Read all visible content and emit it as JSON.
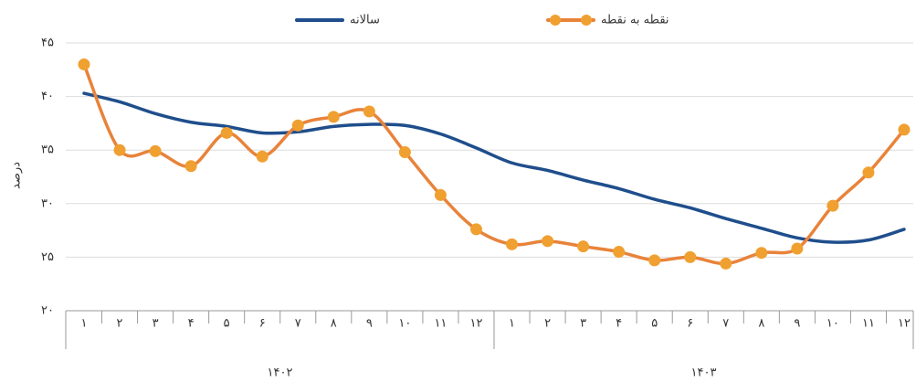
{
  "chart_data": {
    "type": "line",
    "y_label": "درصد",
    "categories": [
      "۱",
      "۲",
      "۳",
      "۴",
      "۵",
      "۶",
      "۷",
      "۸",
      "۹",
      "۱۰",
      "۱۱",
      "۱۲",
      "۱",
      "۲",
      "۳",
      "۴",
      "۵",
      "۶",
      "۷",
      "۸",
      "۹",
      "۱۰",
      "۱۱",
      "۱۲"
    ],
    "x_groups": [
      "۱۴۰۲",
      "۱۴۰۳"
    ],
    "series": [
      {
        "name": "سالانه",
        "color": "#1f4e8c",
        "marker": false,
        "values": [
          40.3,
          39.5,
          38.4,
          37.6,
          37.2,
          36.6,
          36.7,
          37.2,
          37.4,
          37.3,
          36.5,
          35.2,
          33.8,
          33.1,
          32.2,
          31.4,
          30.4,
          29.6,
          28.6,
          27.7,
          26.8,
          26.4,
          26.6,
          27.6
        ]
      },
      {
        "name": "نقطه به نقطه",
        "color": "#f0a030",
        "line_color": "#e8833a",
        "marker": true,
        "values": [
          43.0,
          35.0,
          34.9,
          33.5,
          36.6,
          34.4,
          37.3,
          38.1,
          38.6,
          34.8,
          30.8,
          27.6,
          26.2,
          26.5,
          26.0,
          25.5,
          24.7,
          25.0,
          24.4,
          25.4,
          25.8,
          29.8,
          32.9,
          36.9
        ]
      }
    ],
    "ylim": [
      20,
      45
    ],
    "yticks": [
      {
        "value": 20,
        "label": "۲۰"
      },
      {
        "value": 25,
        "label": "۲۵"
      },
      {
        "value": 30,
        "label": "۳۰"
      },
      {
        "value": 35,
        "label": "۳۵"
      },
      {
        "value": 40,
        "label": "۴۰"
      },
      {
        "value": 45,
        "label": "۴۵"
      }
    ],
    "grid": true
  }
}
